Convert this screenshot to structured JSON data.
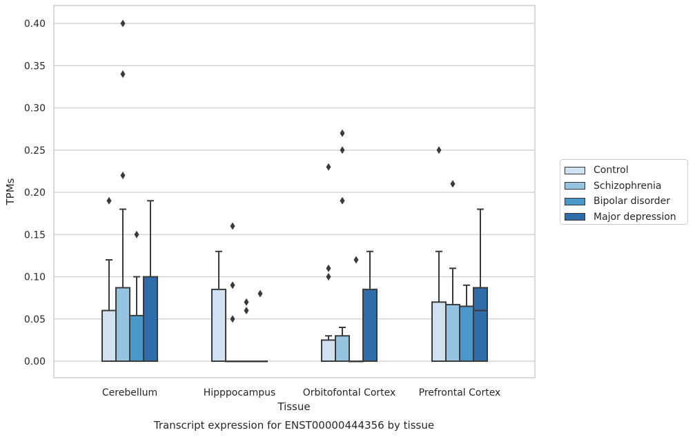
{
  "chart_data": {
    "type": "bar",
    "title": "",
    "caption": "Transcript expression for ENST00000444356 by tissue",
    "xlabel": "Tissue",
    "ylabel": "TPMs",
    "ylim": [
      -0.02,
      0.42
    ],
    "yticks": [
      "0.00",
      "0.05",
      "0.10",
      "0.15",
      "0.20",
      "0.25",
      "0.30",
      "0.35",
      "0.40"
    ],
    "categories": [
      "Cerebellum",
      "Hipppocampus",
      "Orbitofontal Cortex",
      "Prefrontal Cortex"
    ],
    "grid": true,
    "legend_position": "right",
    "series": [
      {
        "name": "Control",
        "color": "#d0e1f2",
        "values": [
          0.06,
          0.085,
          0.025,
          0.07
        ],
        "whisker_high": [
          0.12,
          0.13,
          0.03,
          0.13
        ],
        "outliers": [
          [
            0.19
          ],
          [],
          [
            0.1,
            0.11,
            0.23
          ],
          [
            0.25
          ]
        ]
      },
      {
        "name": "Schizophrenia",
        "color": "#94c4df",
        "values": [
          0.087,
          0.0,
          0.03,
          0.067
        ],
        "whisker_high": [
          0.18,
          null,
          0.04,
          0.11
        ],
        "outliers": [
          [
            0.22,
            0.34,
            0.4
          ],
          [
            0.05,
            0.09,
            0.16
          ],
          [
            0.19,
            0.25,
            0.27
          ],
          [
            0.21
          ]
        ]
      },
      {
        "name": "Bipolar disorder",
        "color": "#4a98c9",
        "values": [
          0.054,
          0.0,
          0.0,
          0.065
        ],
        "whisker_high": [
          0.1,
          null,
          null,
          0.09
        ],
        "outliers": [
          [
            0.15
          ],
          [
            0.06,
            0.07
          ],
          [
            0.12
          ],
          []
        ]
      },
      {
        "name": "Major depression",
        "color": "#2e6daa",
        "values": [
          0.1,
          0.0,
          0.085,
          0.087
        ],
        "whisker_high": [
          0.19,
          null,
          0.13,
          0.18
        ],
        "median_line": [
          null,
          null,
          null,
          0.06
        ],
        "outliers": [
          [],
          [
            0.08
          ],
          [],
          []
        ]
      }
    ]
  }
}
